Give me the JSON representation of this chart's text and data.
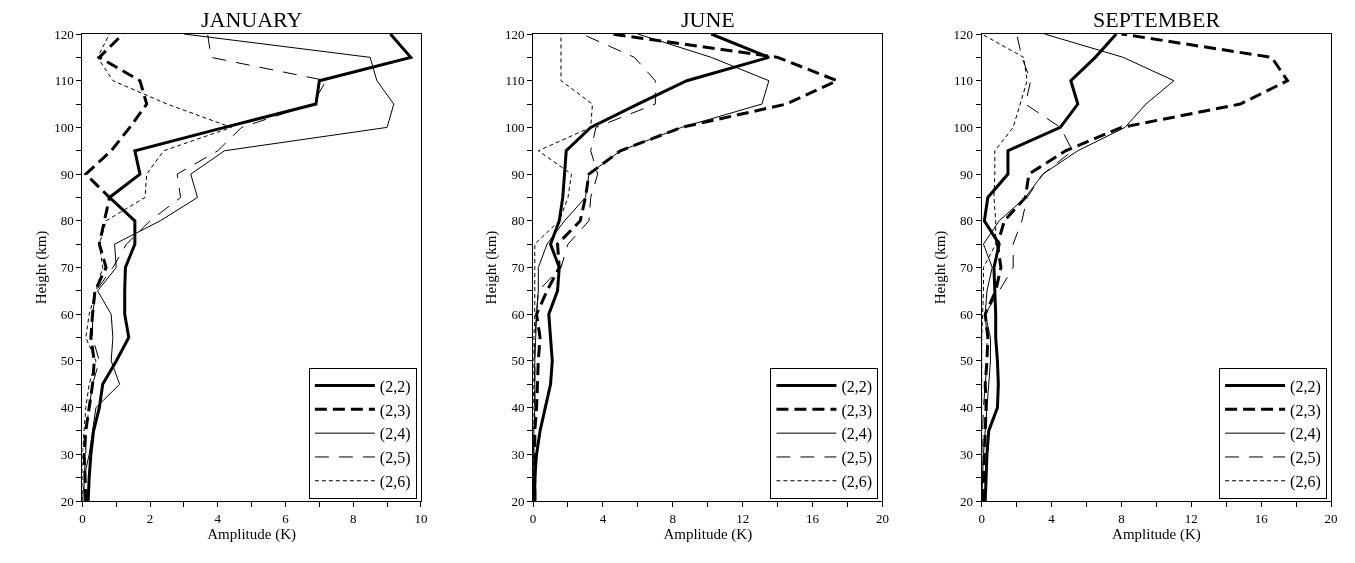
{
  "chart_data": [
    {
      "type": "line",
      "title": "JANUARY",
      "xlabel": "Amplitude (K)",
      "ylabel": "Height (km)",
      "xlim": [
        0,
        10
      ],
      "xticks": [
        0,
        {
          "value": 1,
          "label": null
        },
        2,
        {
          "value": 3,
          "label": null
        },
        4,
        {
          "value": 5,
          "label": null
        },
        6,
        {
          "value": 7,
          "label": null
        },
        8,
        {
          "value": 9,
          "label": null
        },
        10
      ],
      "ylim": [
        20,
        120
      ],
      "yticks": [
        20,
        {
          "value": 25,
          "label": null
        },
        30,
        {
          "value": 35,
          "label": null
        },
        40,
        {
          "value": 45,
          "label": null
        },
        50,
        {
          "value": 55,
          "label": null
        },
        60,
        {
          "value": 65,
          "label": null
        },
        70,
        {
          "value": 75,
          "label": null
        },
        80,
        {
          "value": 85,
          "label": null
        },
        90,
        {
          "value": 95,
          "label": null
        },
        100,
        {
          "value": 105,
          "label": null
        },
        110,
        {
          "value": 115,
          "label": null
        },
        120
      ],
      "legend": "bottom right",
      "marker": "none",
      "series": [
        {
          "name": "(2,2)",
          "color": "#000000",
          "line_style": "solid",
          "x": [
            0.17,
            0.2,
            0.25,
            0.33,
            0.5,
            0.6,
            1.0,
            1.37,
            1.25,
            1.25,
            1.27,
            1.55,
            1.55,
            0.8,
            1.7,
            1.55,
            4.2,
            6.9,
            7.0,
            9.7,
            9.1
          ],
          "values": [
            20,
            25,
            30,
            35,
            40,
            45,
            50,
            55,
            60,
            65,
            70,
            75,
            80,
            85,
            90,
            95,
            100,
            105,
            110,
            115,
            120
          ]
        },
        {
          "name": "(2,3)",
          "color": "#000000",
          "line_style": "dashed",
          "x": [
            0.1,
            0.08,
            0.05,
            0.1,
            0.2,
            0.3,
            0.35,
            0.25,
            0.3,
            0.37,
            0.7,
            0.5,
            0.65,
            0.8,
            0.1,
            0.85,
            1.4,
            1.9,
            1.7,
            0.5,
            1.2
          ],
          "values": [
            20,
            25,
            30,
            35,
            40,
            45,
            50,
            55,
            60,
            65,
            70,
            75,
            80,
            85,
            90,
            95,
            100,
            105,
            110,
            115,
            120
          ]
        },
        {
          "name": "(2,4)",
          "color": "#000000",
          "line_style": "solid",
          "x": [
            0.05,
            0.05,
            0.2,
            0.3,
            0.4,
            1.1,
            0.85,
            0.9,
            0.85,
            0.45,
            1.0,
            0.95,
            2.3,
            3.4,
            3.2,
            4.2,
            9.0,
            9.2,
            8.7,
            8.5,
            3.0
          ],
          "values": [
            20,
            25,
            30,
            35,
            40,
            45,
            50,
            55,
            60,
            65,
            70,
            75,
            80,
            85,
            90,
            95,
            100,
            105,
            110,
            115,
            120
          ]
        },
        {
          "name": "(2,5)",
          "color": "#000000",
          "line_style": "dashed",
          "x": [
            0.0,
            0.05,
            0.1,
            0.1,
            0.2,
            0.3,
            0.5,
            0.3,
            0.3,
            0.4,
            0.9,
            1.3,
            2.0,
            2.9,
            2.8,
            4.0,
            4.7,
            6.8,
            7.2,
            3.8,
            3.7
          ],
          "values": [
            20,
            25,
            30,
            35,
            40,
            45,
            50,
            55,
            60,
            65,
            70,
            75,
            80,
            85,
            90,
            95,
            100,
            105,
            110,
            115,
            120
          ]
        },
        {
          "name": "(2,6)",
          "color": "#000000",
          "line_style": "dotted",
          "x": [
            0.0,
            0.0,
            0.0,
            0.05,
            0.1,
            0.2,
            0.4,
            0.1,
            0.2,
            0.4,
            0.6,
            0.5,
            0.7,
            1.85,
            1.9,
            2.4,
            4.4,
            2.5,
            0.9,
            0.45,
            0.8
          ],
          "values": [
            20,
            25,
            30,
            35,
            40,
            45,
            50,
            55,
            60,
            65,
            70,
            75,
            80,
            85,
            90,
            95,
            100,
            105,
            110,
            115,
            120
          ]
        }
      ]
    },
    {
      "type": "line",
      "title": "JUNE",
      "xlabel": "Amplitude (K)",
      "ylabel": "Height (km)",
      "xlim": [
        0,
        20
      ],
      "xticks": [
        0,
        {
          "value": 2,
          "label": null
        },
        4,
        {
          "value": 6,
          "label": null
        },
        8,
        {
          "value": 10,
          "label": null
        },
        12,
        {
          "value": 14,
          "label": null
        },
        16,
        {
          "value": 18,
          "label": null
        },
        20
      ],
      "ylim": [
        20,
        120
      ],
      "yticks": [
        20,
        {
          "value": 25,
          "label": null
        },
        30,
        {
          "value": 35,
          "label": null
        },
        40,
        {
          "value": 45,
          "label": null
        },
        50,
        {
          "value": 55,
          "label": null
        },
        60,
        {
          "value": 65,
          "label": null
        },
        70,
        {
          "value": 75,
          "label": null
        },
        80,
        {
          "value": 85,
          "label": null
        },
        90,
        {
          "value": 95,
          "label": null
        },
        100,
        {
          "value": 105,
          "label": null
        },
        110,
        {
          "value": 115,
          "label": null
        },
        120
      ],
      "legend": "bottom right",
      "marker": "none",
      "series": [
        {
          "name": "(2,2)",
          "color": "#000000",
          "line_style": "solid",
          "x": [
            0.1,
            0.1,
            0.2,
            0.4,
            0.7,
            1.0,
            1.1,
            1.0,
            0.9,
            1.4,
            1.5,
            1.0,
            1.5,
            1.7,
            1.8,
            1.9,
            3.3,
            6.0,
            8.8,
            13.5,
            10.2
          ],
          "values": [
            20,
            25,
            30,
            35,
            40,
            45,
            50,
            55,
            60,
            65,
            70,
            75,
            80,
            85,
            90,
            95,
            100,
            105,
            110,
            115,
            120
          ]
        },
        {
          "name": "(2,3)",
          "color": "#000000",
          "line_style": "dashed",
          "x": [
            0.1,
            0.1,
            0.1,
            0.1,
            0.2,
            0.25,
            0.3,
            0.4,
            0.2,
            0.8,
            1.5,
            1.4,
            2.7,
            3.0,
            3.2,
            5.0,
            8.5,
            14.5,
            17.4,
            14.0,
            4.5
          ],
          "values": [
            20,
            25,
            30,
            35,
            40,
            45,
            50,
            55,
            60,
            65,
            70,
            75,
            80,
            85,
            90,
            95,
            100,
            105,
            110,
            115,
            120
          ]
        },
        {
          "name": "(2,4)",
          "color": "#000000",
          "line_style": "solid",
          "x": [
            0.05,
            0.05,
            0.05,
            0.05,
            0.1,
            0.1,
            0.1,
            0.15,
            0.2,
            0.3,
            0.3,
            0.8,
            1.8,
            3.0,
            3.2,
            5.0,
            8.5,
            13.1,
            13.5,
            10.2,
            6.0
          ],
          "values": [
            20,
            25,
            30,
            35,
            40,
            45,
            50,
            55,
            60,
            65,
            70,
            75,
            80,
            85,
            90,
            95,
            100,
            105,
            110,
            115,
            120
          ]
        },
        {
          "name": "(2,5)",
          "color": "#000000",
          "line_style": "dashed",
          "x": [
            0.0,
            0.0,
            0.0,
            0.1,
            0.1,
            0.1,
            0.1,
            0.1,
            0.2,
            0.3,
            1.6,
            2.0,
            3.2,
            3.3,
            3.7,
            3.3,
            3.6,
            7.0,
            7.0,
            5.8,
            2.8
          ],
          "values": [
            20,
            25,
            30,
            35,
            40,
            45,
            50,
            55,
            60,
            65,
            70,
            75,
            80,
            85,
            90,
            95,
            100,
            105,
            110,
            115,
            120
          ]
        },
        {
          "name": "(2,6)",
          "color": "#000000",
          "line_style": "dotted",
          "x": [
            0.0,
            0.0,
            0.0,
            0.0,
            0.0,
            0.05,
            0.05,
            0.05,
            0.1,
            0.1,
            0.1,
            0.1,
            1.5,
            2.0,
            2.2,
            0.3,
            3.3,
            3.4,
            1.6,
            1.6,
            1.6
          ],
          "values": [
            20,
            25,
            30,
            35,
            40,
            45,
            50,
            55,
            60,
            65,
            70,
            75,
            80,
            85,
            90,
            95,
            100,
            105,
            110,
            115,
            120
          ]
        }
      ]
    },
    {
      "type": "line",
      "title": "SEPTEMBER",
      "xlabel": "Amplitude (K)",
      "ylabel": "Height (km)",
      "xlim": [
        0,
        20
      ],
      "xticks": [
        0,
        {
          "value": 2,
          "label": null
        },
        4,
        {
          "value": 6,
          "label": null
        },
        8,
        {
          "value": 10,
          "label": null
        },
        12,
        {
          "value": 14,
          "label": null
        },
        16,
        {
          "value": 18,
          "label": null
        },
        20
      ],
      "ylim": [
        20,
        120
      ],
      "yticks": [
        20,
        {
          "value": 25,
          "label": null
        },
        30,
        {
          "value": 35,
          "label": null
        },
        40,
        {
          "value": 45,
          "label": null
        },
        50,
        {
          "value": 55,
          "label": null
        },
        60,
        {
          "value": 65,
          "label": null
        },
        70,
        {
          "value": 75,
          "label": null
        },
        80,
        {
          "value": 85,
          "label": null
        },
        90,
        {
          "value": 95,
          "label": null
        },
        100,
        {
          "value": 105,
          "label": null
        },
        110,
        {
          "value": 115,
          "label": null
        },
        120
      ],
      "legend": "bottom right",
      "marker": "none",
      "series": [
        {
          "name": "(2,2)",
          "color": "#000000",
          "line_style": "solid",
          "x": [
            0.2,
            0.25,
            0.3,
            0.4,
            0.9,
            0.95,
            0.9,
            0.8,
            0.8,
            0.75,
            0.7,
            1.0,
            0.15,
            0.35,
            1.5,
            1.5,
            4.5,
            5.5,
            5.1,
            6.5,
            7.7
          ],
          "values": [
            20,
            25,
            30,
            35,
            40,
            45,
            50,
            55,
            60,
            65,
            70,
            75,
            80,
            85,
            90,
            95,
            100,
            105,
            110,
            115,
            120
          ]
        },
        {
          "name": "(2,3)",
          "color": "#000000",
          "line_style": "dashed",
          "x": [
            0.1,
            0.1,
            0.15,
            0.2,
            0.25,
            0.2,
            0.3,
            0.35,
            0.2,
            0.8,
            1.1,
            0.9,
            1.3,
            2.5,
            2.7,
            4.8,
            8.0,
            14.8,
            17.5,
            16.6,
            8.0
          ],
          "values": [
            20,
            25,
            30,
            35,
            40,
            45,
            50,
            55,
            60,
            65,
            70,
            75,
            80,
            85,
            90,
            95,
            100,
            105,
            110,
            115,
            120
          ]
        },
        {
          "name": "(2,4)",
          "color": "#000000",
          "line_style": "solid",
          "x": [
            0.0,
            0.05,
            0.1,
            0.2,
            0.3,
            0.4,
            0.5,
            0.5,
            0.2,
            0.3,
            0.6,
            0.1,
            1.0,
            2.5,
            3.5,
            5.5,
            8.2,
            9.4,
            11.0,
            8.1,
            3.6
          ],
          "values": [
            20,
            25,
            30,
            35,
            40,
            45,
            50,
            55,
            60,
            65,
            70,
            75,
            80,
            85,
            90,
            95,
            100,
            105,
            110,
            115,
            120
          ]
        },
        {
          "name": "(2,5)",
          "color": "#000000",
          "line_style": "dashed",
          "x": [
            0.0,
            0.0,
            0.0,
            0.05,
            0.1,
            0.2,
            0.3,
            0.3,
            0.2,
            1.0,
            1.8,
            1.8,
            2.3,
            2.6,
            3.5,
            5.2,
            4.5,
            2.5,
            2.8,
            2.3,
            2.0
          ],
          "values": [
            20,
            25,
            30,
            35,
            40,
            45,
            50,
            55,
            60,
            65,
            70,
            75,
            80,
            85,
            90,
            95,
            100,
            105,
            110,
            115,
            120
          ]
        },
        {
          "name": "(2,6)",
          "color": "#000000",
          "line_style": "dotted",
          "x": [
            0.0,
            0.0,
            0.0,
            0.0,
            0.0,
            0.0,
            0.0,
            0.0,
            0.05,
            0.1,
            0.1,
            0.8,
            0.8,
            0.7,
            0.75,
            0.75,
            1.8,
            2.2,
            2.6,
            2.4,
            0.0
          ],
          "values": [
            20,
            25,
            30,
            35,
            40,
            45,
            50,
            55,
            60,
            65,
            70,
            75,
            80,
            85,
            90,
            95,
            100,
            105,
            110,
            115,
            120
          ]
        }
      ]
    }
  ]
}
